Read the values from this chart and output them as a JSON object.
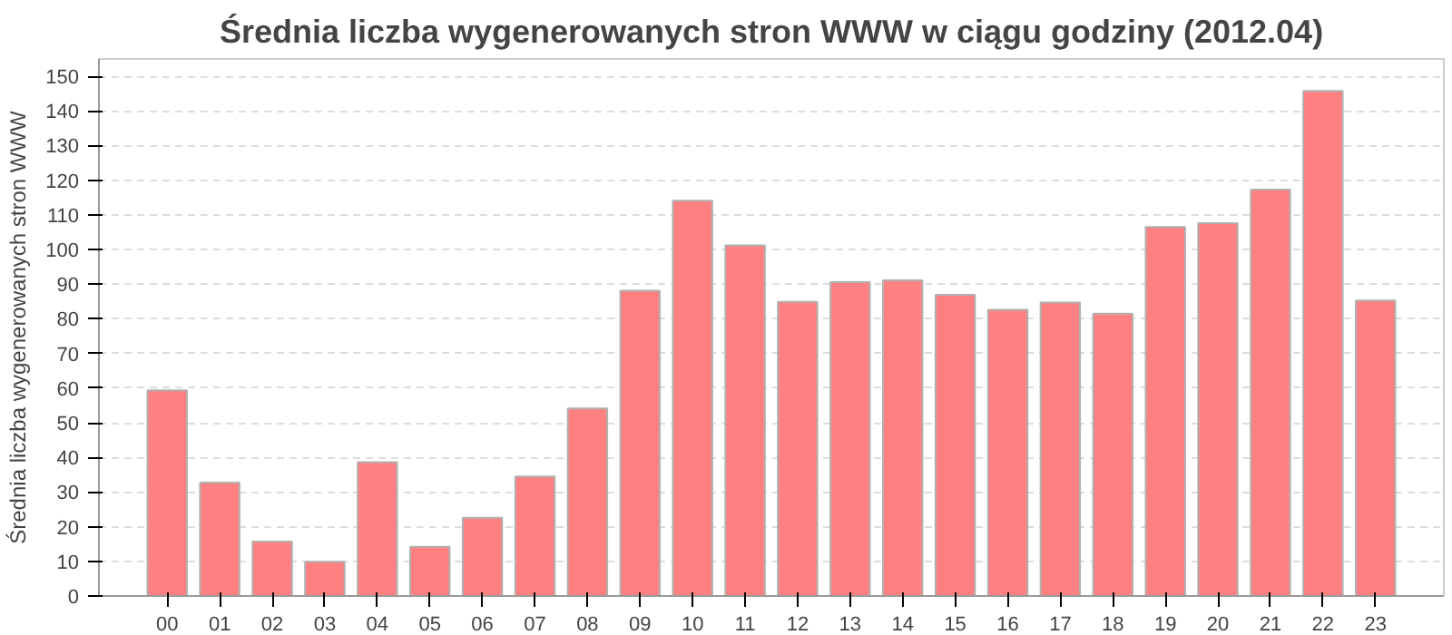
{
  "chart_data": {
    "type": "bar",
    "title": "Średnia liczba wygenerowanych stron WWW w ciągu godziny (2012.04)",
    "ylabel": "Średnia liczba wygenerowanych stron WWW",
    "categories": [
      "00",
      "01",
      "02",
      "03",
      "04",
      "05",
      "06",
      "07",
      "08",
      "09",
      "10",
      "11",
      "12",
      "13",
      "14",
      "15",
      "16",
      "17",
      "18",
      "19",
      "20",
      "21",
      "22",
      "23"
    ],
    "values": [
      59.4,
      32.7,
      15.7,
      9.9,
      38.6,
      14.2,
      22.6,
      34.5,
      54.1,
      88.1,
      114.1,
      101.2,
      84.9,
      90.6,
      91.1,
      86.9,
      82.6,
      84.7,
      81.5,
      106.5,
      107.6,
      117.3,
      145.8,
      85.3
    ],
    "color": "#ff8080",
    "ylim": [
      0,
      155
    ],
    "yticks": [
      0,
      10,
      20,
      30,
      40,
      50,
      60,
      70,
      80,
      90,
      100,
      110,
      120,
      130,
      140,
      150
    ],
    "grid": "y"
  }
}
